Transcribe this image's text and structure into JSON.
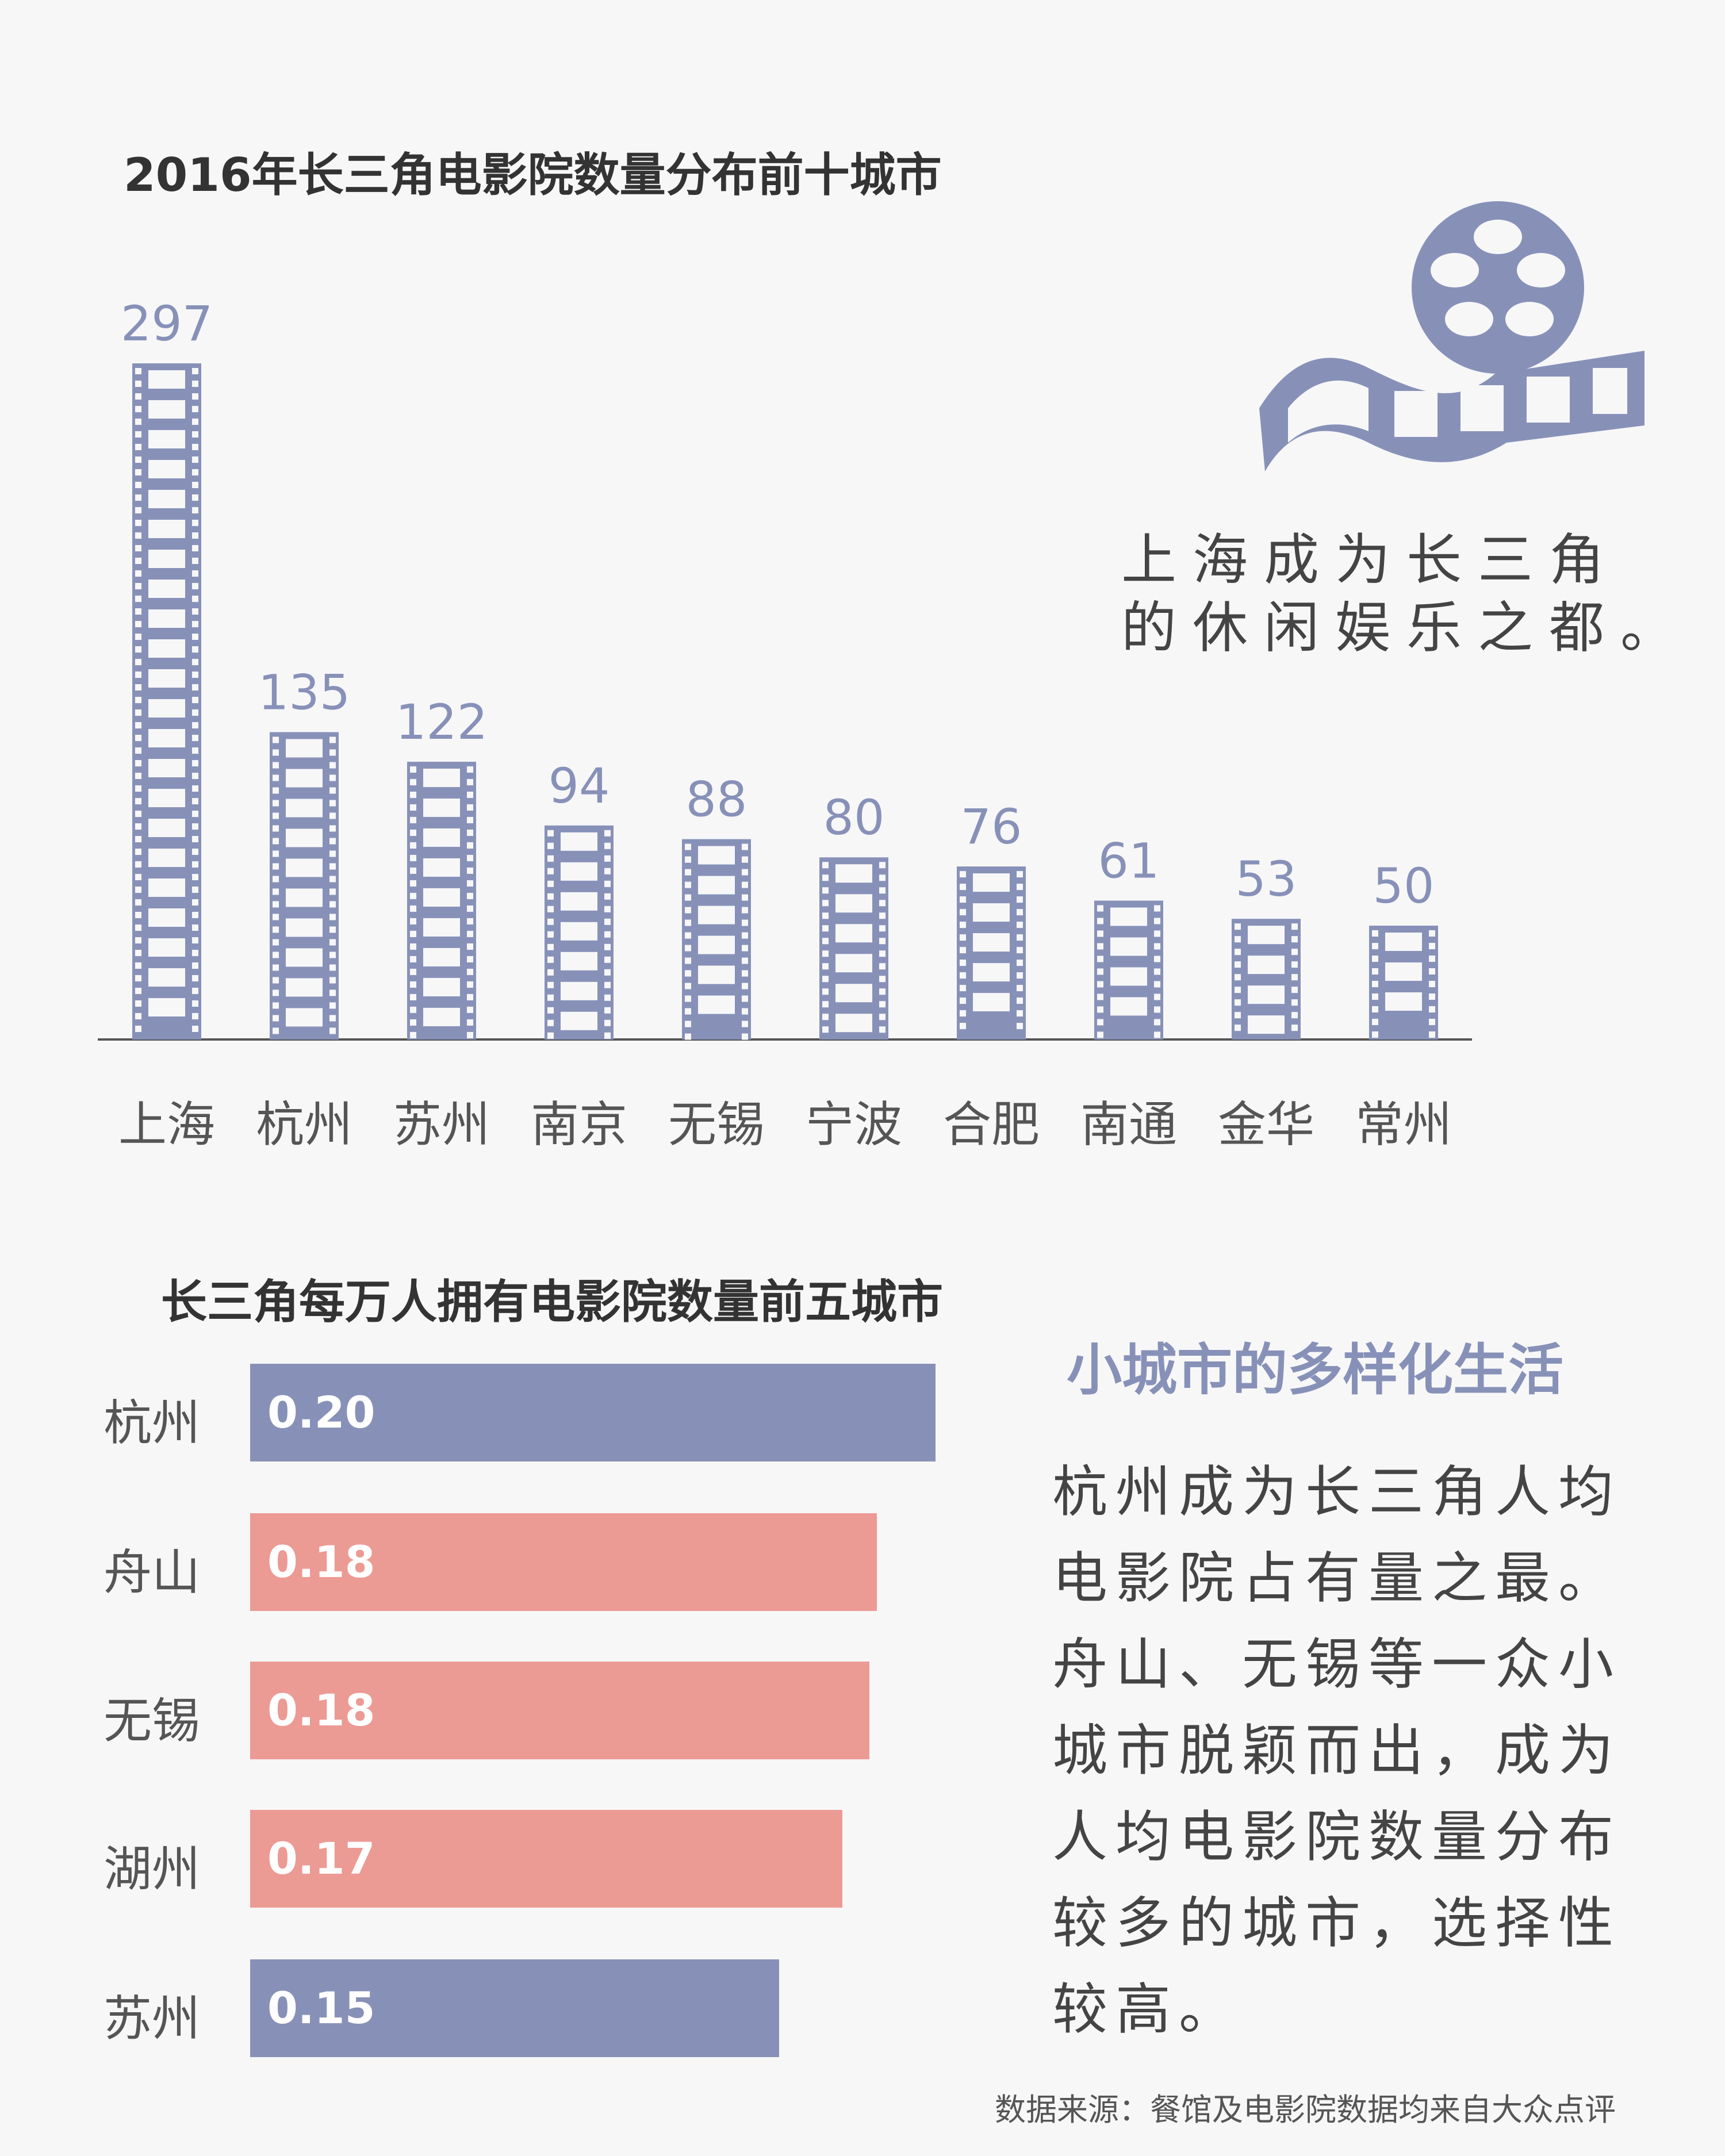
{
  "title": "2016年长三角电影院数量分布前十城市",
  "quote": {
    "line1": "上海成为长三角",
    "line2": "的休闲娱乐之都。"
  },
  "colors": {
    "purple": "#8791b8",
    "pink": "#ec9a94",
    "text": "#333333"
  },
  "icons": [
    "film-reel-icon"
  ],
  "chart_data": [
    {
      "type": "bar",
      "title": "2016年长三角电影院数量分布前十城市",
      "categories": [
        "上海",
        "杭州",
        "苏州",
        "南京",
        "无锡",
        "宁波",
        "合肥",
        "南通",
        "金华",
        "常州"
      ],
      "values": [
        297,
        135,
        122,
        94,
        88,
        80,
        76,
        61,
        53,
        50
      ],
      "ylim": [
        0,
        297
      ],
      "grid": false,
      "legend": "none"
    },
    {
      "type": "bar",
      "orientation": "horizontal",
      "title": "长三角每万人拥有电影院数量前五城市",
      "categories": [
        "杭州",
        "舟山",
        "无锡",
        "湖州",
        "苏州"
      ],
      "values": [
        0.2,
        0.18,
        0.18,
        0.17,
        0.15
      ],
      "value_labels": [
        "0.20",
        "0.18",
        "0.18",
        "0.17",
        "0.15"
      ],
      "colors": [
        "#8791b8",
        "#ec9a94",
        "#ec9a94",
        "#ec9a94",
        "#8791b8"
      ],
      "xlim": [
        0,
        0.2
      ],
      "grid": false,
      "legend": "none"
    }
  ],
  "subhead": "小城市的多样化生活",
  "paragraph": "杭州成为长三角人均电影院占有量之最。舟山、无锡等一众小城市脱颖而出，成为人均电影院数量分布较多的城市，选择性较高。",
  "source": "数据来源：餐馆及电影院数据均来自大众点评"
}
